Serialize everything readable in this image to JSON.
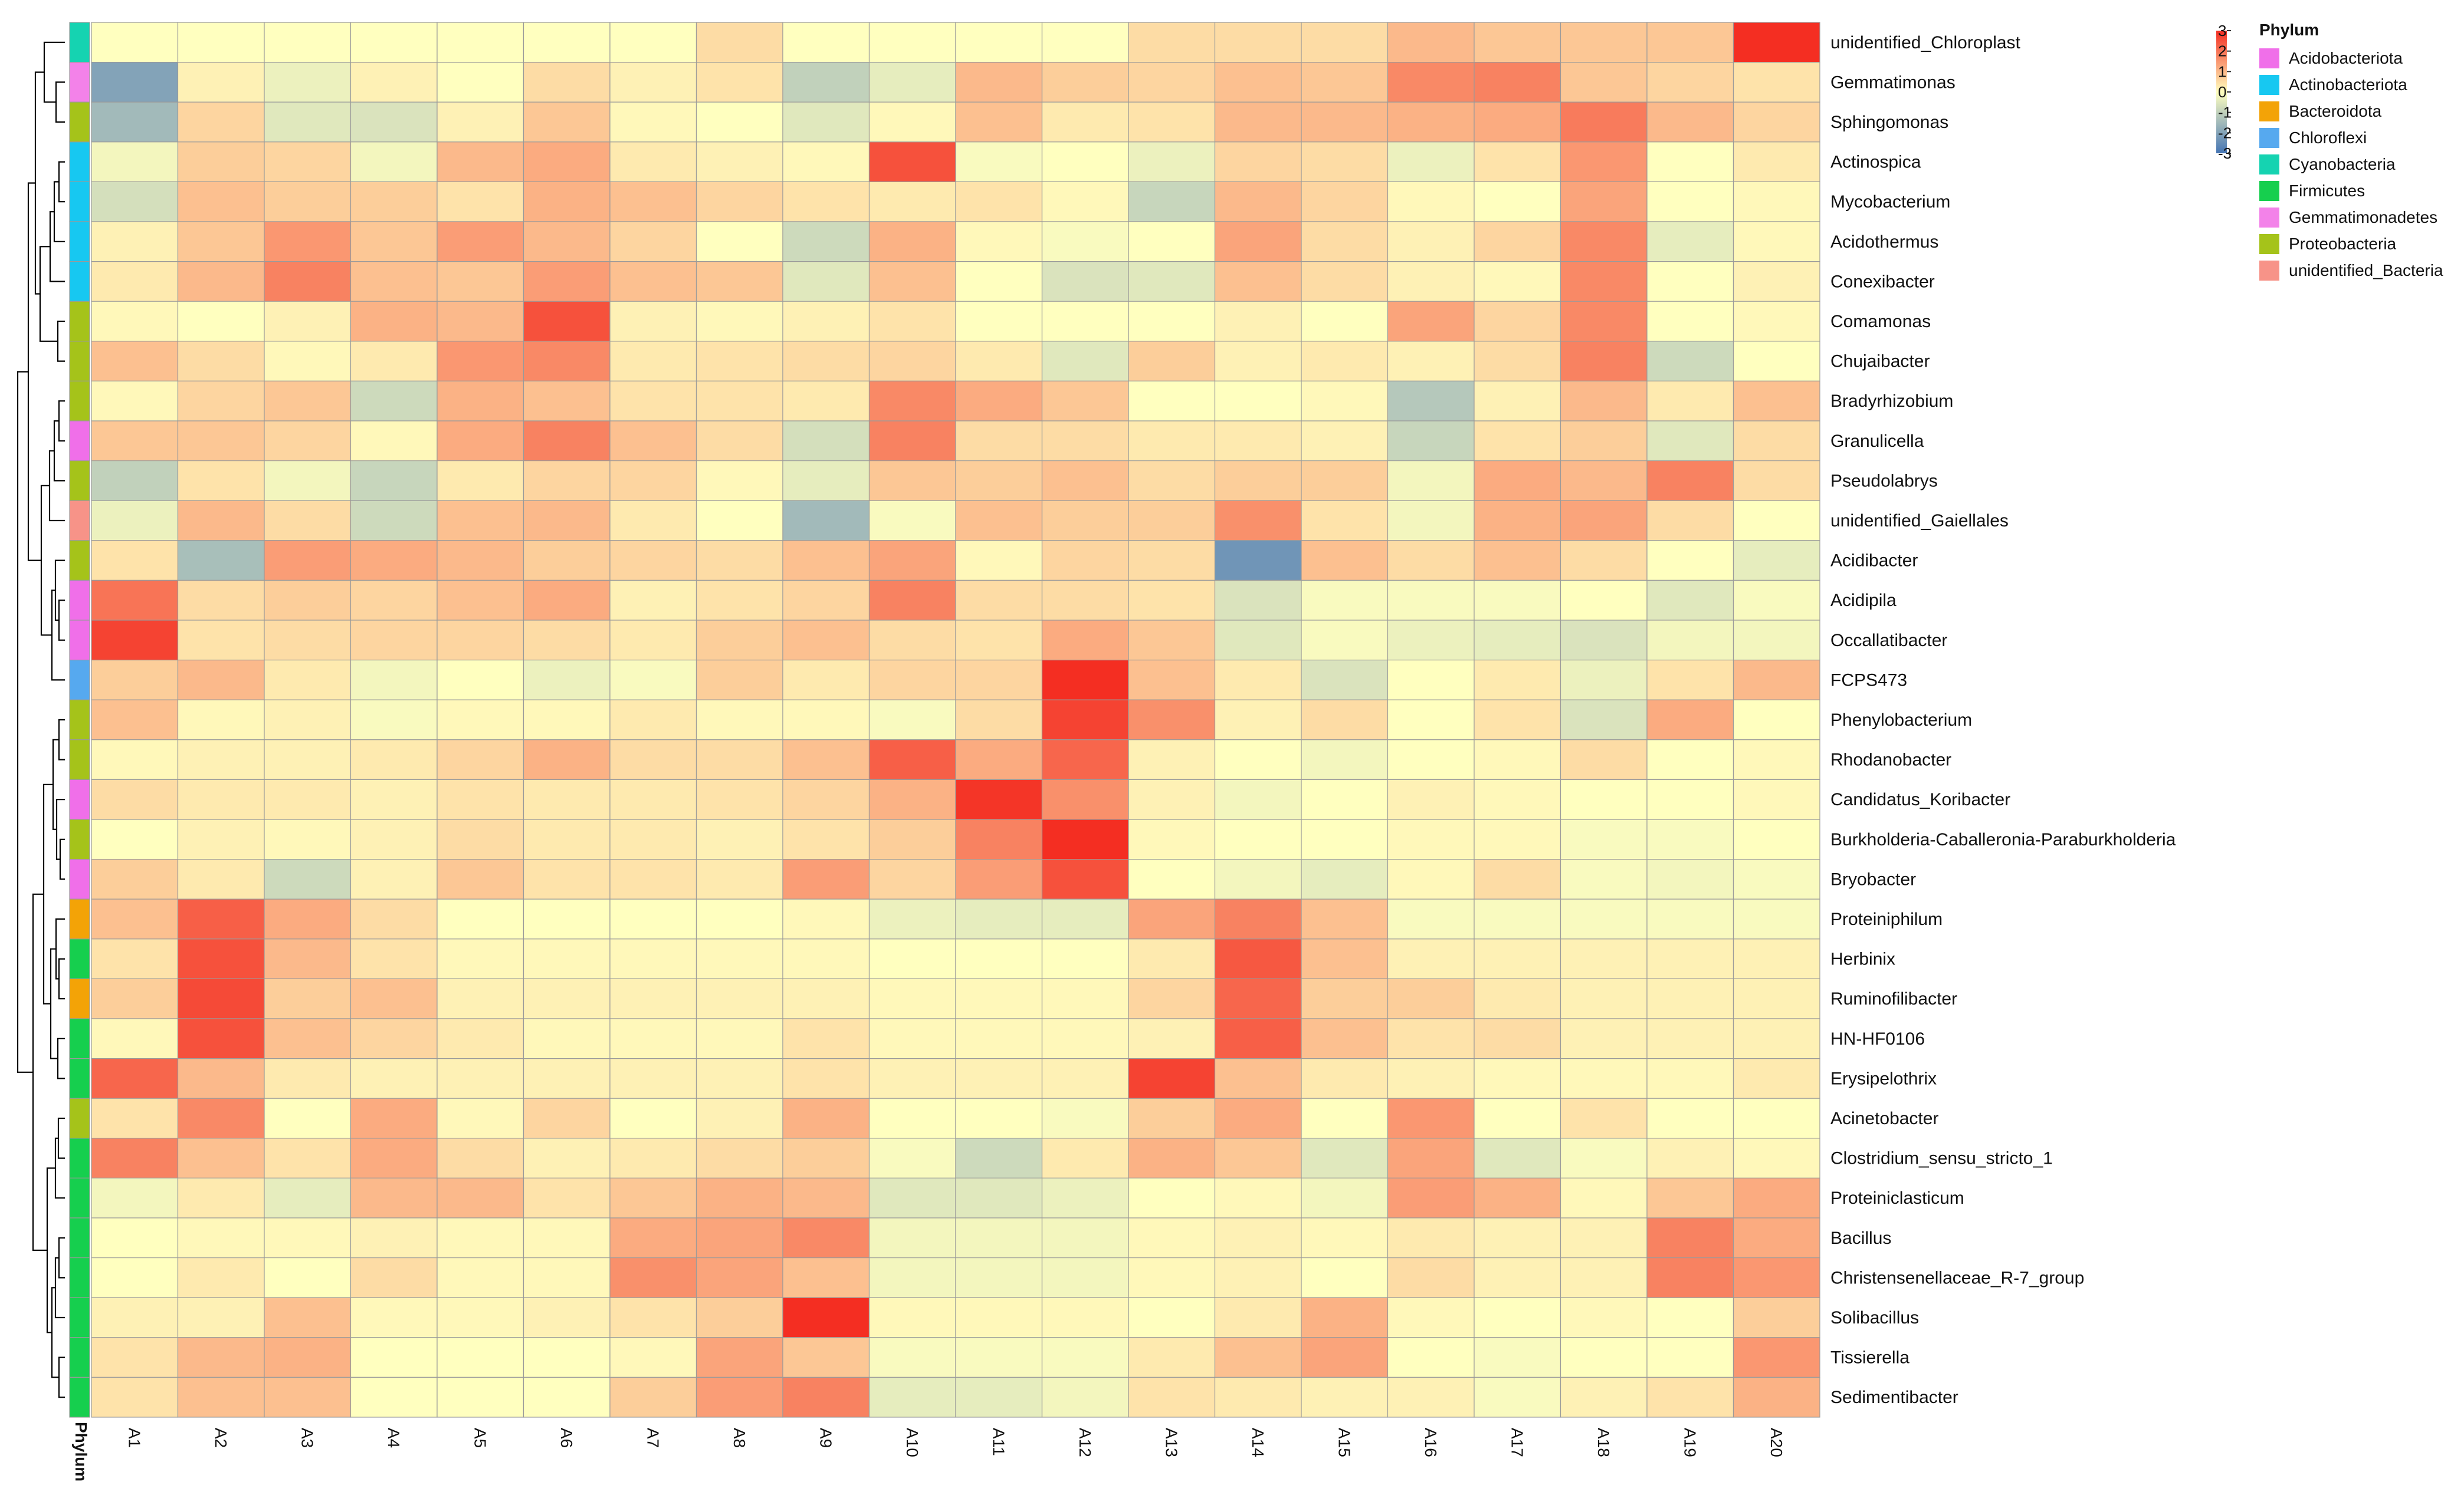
{
  "chart_data": {
    "type": "heatmap",
    "title": "",
    "annotation_label": "Phylum",
    "columns": [
      "A1",
      "A2",
      "A3",
      "A4",
      "A5",
      "A6",
      "A7",
      "A8",
      "A9",
      "A10",
      "A11",
      "A12",
      "A13",
      "A14",
      "A15",
      "A16",
      "A17",
      "A18",
      "A19",
      "A20"
    ],
    "rows": [
      "unidentified_Chloroplast",
      "Gemmatimonas",
      "Sphingomonas",
      "Actinospica",
      "Mycobacterium",
      "Acidothermus",
      "Conexibacter",
      "Comamonas",
      "Chujaibacter",
      "Bradyrhizobium",
      "Granulicella",
      "Pseudolabrys",
      "unidentified_Gaiellales",
      "Acidibacter",
      "Acidipila",
      "Occallatibacter",
      "FCPS473",
      "Phenylobacterium",
      "Rhodanobacter",
      "Candidatus_Koribacter",
      "Burkholderia-Caballeronia-Paraburkholderia",
      "Bryobacter",
      "Proteiniphilum",
      "Herbinix",
      "Ruminofilibacter",
      "HN-HF0106",
      "Erysipelothrix",
      "Acinetobacter",
      "Clostridium_sensu_stricto_1",
      "Proteiniclasticum",
      "Bacillus",
      "Christensenellaceae_R-7_group",
      "Solibacillus",
      "Tissierella",
      "Sedimentibacter"
    ],
    "row_phylum": [
      "Cyanobacteria",
      "Gemmatimonadetes",
      "Proteobacteria",
      "Actinobacteriota",
      "Actinobacteriota",
      "Actinobacteriota",
      "Actinobacteriota",
      "Proteobacteria",
      "Proteobacteria",
      "Proteobacteria",
      "Acidobacteriota",
      "Proteobacteria",
      "unidentified_Bacteria",
      "Proteobacteria",
      "Acidobacteriota",
      "Acidobacteriota",
      "Chloroflexi",
      "Proteobacteria",
      "Proteobacteria",
      "Acidobacteriota",
      "Proteobacteria",
      "Acidobacteriota",
      "Bacteroidota",
      "Firmicutes",
      "Bacteroidota",
      "Firmicutes",
      "Firmicutes",
      "Proteobacteria",
      "Firmicutes",
      "Firmicutes",
      "Firmicutes",
      "Firmicutes",
      "Firmicutes",
      "Firmicutes",
      "Firmicutes"
    ],
    "values": [
      [
        0.0,
        0.0,
        0.0,
        0.0,
        0.0,
        0.0,
        0.0,
        0.5,
        0.0,
        0.0,
        0.0,
        0.0,
        0.5,
        0.5,
        0.5,
        1.0,
        0.8,
        0.8,
        0.8,
        3.3
      ],
      [
        -2.0,
        0.2,
        -0.3,
        0.2,
        0.0,
        0.5,
        0.2,
        0.4,
        -1.0,
        -0.4,
        1.0,
        0.7,
        0.6,
        0.9,
        0.8,
        1.7,
        1.8,
        0.8,
        0.6,
        0.4
      ],
      [
        -1.5,
        0.6,
        -0.5,
        -0.6,
        0.2,
        0.8,
        0.1,
        0.0,
        -0.5,
        0.1,
        0.9,
        0.3,
        0.4,
        1.0,
        1.0,
        1.1,
        1.2,
        1.9,
        1.0,
        0.6
      ],
      [
        -0.2,
        0.7,
        0.6,
        -0.2,
        1.0,
        1.2,
        0.3,
        0.2,
        0.1,
        2.5,
        -0.1,
        0.0,
        -0.3,
        0.6,
        0.5,
        -0.3,
        0.4,
        1.5,
        0.0,
        0.3
      ],
      [
        -0.7,
        0.9,
        0.7,
        0.7,
        0.4,
        1.1,
        0.9,
        0.6,
        0.4,
        0.3,
        0.4,
        0.1,
        -0.9,
        1.0,
        0.6,
        0.1,
        0.0,
        1.3,
        0.0,
        0.1
      ],
      [
        0.2,
        0.8,
        1.5,
        0.8,
        1.4,
        1.0,
        0.6,
        0.0,
        -0.8,
        1.1,
        0.1,
        -0.1,
        0.0,
        1.3,
        0.5,
        0.2,
        0.6,
        1.7,
        -0.4,
        0.1
      ],
      [
        0.3,
        1.0,
        1.8,
        0.9,
        0.8,
        1.4,
        0.9,
        0.8,
        -0.5,
        0.9,
        0.0,
        -0.6,
        -0.5,
        0.9,
        0.5,
        0.2,
        0.1,
        1.7,
        0.0,
        0.2
      ],
      [
        0.1,
        0.0,
        0.2,
        1.1,
        1.0,
        2.5,
        0.2,
        0.1,
        0.2,
        0.4,
        0.0,
        0.0,
        0.0,
        0.2,
        0.0,
        1.3,
        0.6,
        1.7,
        0.0,
        0.1
      ],
      [
        0.9,
        0.5,
        0.1,
        0.3,
        1.5,
        1.7,
        0.3,
        0.4,
        0.5,
        0.6,
        0.3,
        -0.5,
        0.7,
        0.2,
        0.3,
        0.2,
        0.5,
        1.8,
        -0.8,
        0.0
      ],
      [
        0.1,
        0.6,
        0.8,
        -0.8,
        1.1,
        0.9,
        0.4,
        0.4,
        0.3,
        1.7,
        1.2,
        0.8,
        0.0,
        0.0,
        0.1,
        -1.2,
        0.2,
        1.0,
        0.3,
        0.9
      ],
      [
        0.8,
        0.8,
        0.6,
        0.1,
        1.2,
        1.8,
        0.9,
        0.5,
        -0.7,
        1.8,
        0.5,
        0.5,
        0.3,
        0.3,
        0.2,
        -0.9,
        0.4,
        0.7,
        -0.5,
        0.5
      ],
      [
        -1.0,
        0.4,
        -0.2,
        -0.9,
        0.3,
        0.6,
        0.6,
        0.1,
        -0.4,
        0.8,
        0.7,
        0.9,
        0.5,
        0.7,
        0.7,
        -0.2,
        1.2,
        1.0,
        1.8,
        0.5
      ],
      [
        -0.3,
        1.0,
        0.5,
        -0.8,
        0.9,
        1.0,
        0.3,
        0.0,
        -1.5,
        -0.1,
        0.9,
        0.7,
        0.7,
        1.6,
        0.4,
        -0.2,
        1.1,
        1.3,
        0.5,
        0.0
      ],
      [
        0.4,
        -1.4,
        1.4,
        1.2,
        1.0,
        0.7,
        0.6,
        0.5,
        0.9,
        1.3,
        0.1,
        0.6,
        0.5,
        -2.3,
        0.9,
        0.5,
        0.9,
        0.5,
        0.0,
        -0.4
      ],
      [
        2.0,
        0.5,
        0.7,
        0.6,
        0.9,
        1.2,
        0.2,
        0.4,
        0.6,
        1.8,
        0.5,
        0.5,
        0.4,
        -0.6,
        -0.1,
        -0.1,
        -0.1,
        0.0,
        -0.5,
        -0.1
      ],
      [
        2.7,
        0.4,
        0.5,
        0.6,
        0.6,
        0.5,
        0.3,
        0.7,
        0.9,
        0.5,
        0.4,
        1.2,
        0.8,
        -0.5,
        -0.1,
        -0.3,
        -0.4,
        -0.6,
        -0.2,
        -0.2
      ],
      [
        0.7,
        1.0,
        0.3,
        -0.2,
        0.0,
        -0.3,
        -0.1,
        0.7,
        0.3,
        0.6,
        0.6,
        3.0,
        0.9,
        0.3,
        -0.6,
        0.0,
        0.3,
        -0.3,
        0.4,
        1.0
      ],
      [
        0.9,
        0.1,
        0.2,
        -0.1,
        0.1,
        0.1,
        0.3,
        0.1,
        0.1,
        -0.1,
        0.5,
        2.7,
        1.6,
        0.2,
        0.5,
        0.0,
        0.4,
        -0.6,
        1.2,
        0.0
      ],
      [
        0.1,
        0.2,
        0.2,
        0.3,
        0.6,
        1.1,
        0.5,
        0.5,
        0.9,
        2.3,
        1.2,
        2.2,
        0.2,
        0.0,
        -0.2,
        0.0,
        0.1,
        0.5,
        0.0,
        0.1
      ],
      [
        0.5,
        0.3,
        0.3,
        0.2,
        0.4,
        0.3,
        0.3,
        0.4,
        0.6,
        1.1,
        2.9,
        1.6,
        0.2,
        -0.2,
        0.0,
        0.2,
        0.1,
        0.0,
        0.0,
        0.1
      ],
      [
        0.0,
        0.2,
        0.1,
        0.2,
        0.5,
        0.3,
        0.3,
        0.2,
        0.4,
        0.7,
        1.8,
        3.2,
        0.1,
        0.0,
        0.0,
        0.1,
        0.1,
        -0.1,
        -0.1,
        0.0
      ],
      [
        0.7,
        0.3,
        -0.8,
        0.2,
        0.8,
        0.4,
        0.4,
        0.3,
        1.4,
        0.6,
        1.4,
        2.5,
        0.0,
        -0.2,
        -0.4,
        0.1,
        0.5,
        -0.1,
        -0.2,
        -0.1
      ],
      [
        0.9,
        2.3,
        1.2,
        0.5,
        0.0,
        0.0,
        0.0,
        0.0,
        0.1,
        -0.3,
        -0.4,
        -0.4,
        1.3,
        1.8,
        0.9,
        -0.1,
        -0.1,
        -0.1,
        -0.1,
        -0.1
      ],
      [
        0.4,
        2.5,
        1.0,
        0.4,
        0.1,
        0.1,
        0.1,
        0.1,
        0.1,
        0.0,
        0.0,
        0.0,
        0.3,
        2.4,
        0.9,
        0.2,
        0.2,
        0.2,
        0.2,
        0.2
      ],
      [
        0.7,
        2.6,
        0.7,
        0.9,
        0.2,
        0.2,
        0.2,
        0.2,
        0.2,
        0.1,
        0.1,
        0.1,
        0.6,
        2.2,
        0.7,
        0.7,
        0.3,
        0.2,
        0.2,
        0.2
      ],
      [
        0.1,
        2.5,
        0.9,
        0.6,
        0.3,
        0.1,
        0.1,
        0.1,
        0.4,
        0.1,
        0.1,
        0.1,
        0.2,
        2.3,
        0.9,
        0.4,
        0.5,
        0.2,
        0.2,
        0.2
      ],
      [
        2.2,
        1.0,
        0.3,
        0.2,
        0.2,
        0.2,
        0.2,
        0.2,
        0.4,
        0.2,
        0.2,
        0.2,
        2.7,
        0.9,
        0.3,
        0.2,
        0.1,
        0.1,
        0.1,
        0.3
      ],
      [
        0.4,
        1.7,
        0.0,
        1.2,
        0.1,
        0.6,
        0.0,
        0.2,
        1.1,
        0.0,
        0.0,
        -0.1,
        0.7,
        1.2,
        0.0,
        1.5,
        0.0,
        0.4,
        0.0,
        0.0
      ],
      [
        1.8,
        0.9,
        0.4,
        1.2,
        0.5,
        0.2,
        0.3,
        0.5,
        0.7,
        -0.1,
        -0.8,
        0.3,
        1.1,
        0.8,
        -0.5,
        1.3,
        -0.5,
        -0.1,
        0.2,
        0.1
      ],
      [
        -0.2,
        0.3,
        -0.4,
        1.0,
        1.0,
        0.4,
        0.8,
        1.1,
        1.0,
        -0.5,
        -0.5,
        -0.3,
        0.0,
        0.1,
        -0.2,
        1.4,
        1.1,
        0.1,
        0.8,
        1.2
      ],
      [
        0.0,
        0.1,
        0.1,
        0.2,
        0.1,
        0.1,
        1.2,
        1.3,
        1.7,
        -0.2,
        -0.2,
        -0.2,
        0.1,
        0.2,
        0.1,
        0.3,
        0.2,
        0.2,
        1.8,
        1.2
      ],
      [
        0.0,
        0.3,
        0.0,
        0.5,
        0.1,
        0.1,
        1.6,
        1.3,
        0.9,
        -0.2,
        -0.2,
        -0.2,
        0.1,
        0.2,
        0.0,
        0.5,
        0.2,
        0.2,
        1.8,
        1.5
      ],
      [
        0.2,
        0.2,
        0.9,
        0.1,
        0.1,
        0.2,
        0.4,
        0.7,
        3.2,
        0.1,
        0.1,
        0.1,
        0.0,
        0.3,
        1.1,
        0.1,
        0.0,
        0.1,
        0.0,
        0.7
      ],
      [
        0.4,
        1.0,
        1.1,
        0.0,
        0.0,
        0.0,
        0.1,
        1.3,
        0.8,
        -0.1,
        -0.1,
        -0.1,
        0.3,
        0.9,
        1.3,
        0.0,
        -0.1,
        0.0,
        0.0,
        1.5
      ],
      [
        0.4,
        0.9,
        0.9,
        0.0,
        0.0,
        0.0,
        0.7,
        1.4,
        1.8,
        -0.4,
        -0.4,
        -0.2,
        0.4,
        0.3,
        0.2,
        0.2,
        -0.1,
        0.2,
        0.4,
        1.1
      ]
    ],
    "color_scale": {
      "stops": [
        {
          "value": -3,
          "color": "#4575b4"
        },
        {
          "value": 0,
          "color": "#ffffbf"
        },
        {
          "value": 3,
          "color": "#f42e22"
        }
      ],
      "ticks": [
        3,
        2,
        1,
        0,
        -1,
        -2,
        -3
      ]
    },
    "legend": {
      "title": "Phylum",
      "position": "top-right",
      "entries": [
        {
          "label": "Acidobacteriota",
          "color": "#f06fe9"
        },
        {
          "label": "Actinobacteriota",
          "color": "#17c8f1"
        },
        {
          "label": "Bacteroidota",
          "color": "#f3a307"
        },
        {
          "label": "Chloroflexi",
          "color": "#56a9ef"
        },
        {
          "label": "Cyanobacteria",
          "color": "#15d3b1"
        },
        {
          "label": "Firmicutes",
          "color": "#16cf4e"
        },
        {
          "label": "Gemmatimonadetes",
          "color": "#f382e9"
        },
        {
          "label": "Proteobacteria",
          "color": "#a5c31a"
        },
        {
          "label": "unidentified_Bacteria",
          "color": "#f79388"
        }
      ]
    }
  }
}
